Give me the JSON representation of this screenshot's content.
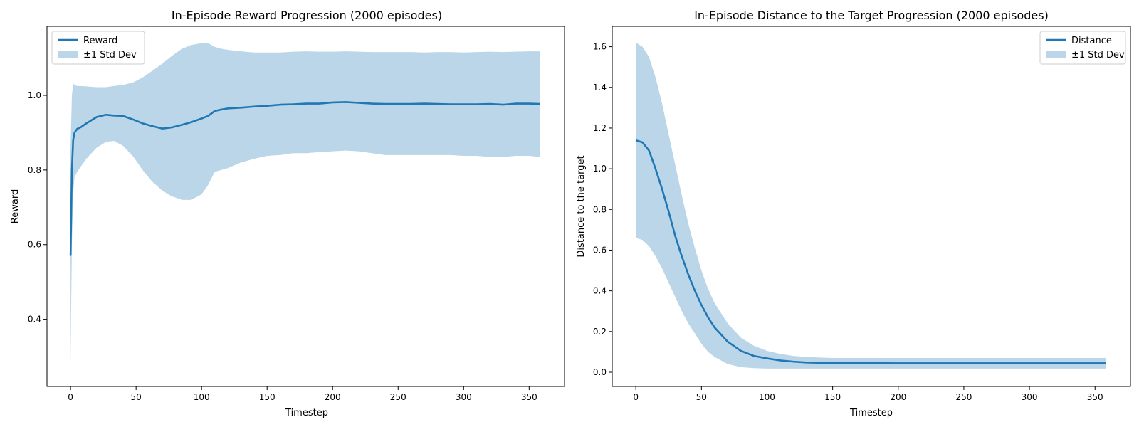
{
  "colors": {
    "line": "#1f77b4",
    "band": "#1f77b4",
    "band_opacity": 0.3
  },
  "chart_data": [
    {
      "type": "line",
      "title": "In-Episode Reward Progression (2000 episodes)",
      "xlabel": "Timestep",
      "ylabel": "Reward",
      "xlim": [
        -18,
        377
      ],
      "ylim": [
        0.22,
        1.185
      ],
      "xticks": [
        0,
        50,
        100,
        150,
        200,
        250,
        300,
        350
      ],
      "yticks": [
        0.4,
        0.6,
        0.8,
        1.0
      ],
      "legend_position": "upper-left",
      "legend": [
        "Reward",
        "±1 Std Dev"
      ],
      "grid": false,
      "series": [
        {
          "name": "Reward",
          "x": [
            0,
            1,
            2,
            3,
            5,
            8,
            12,
            20,
            27,
            33,
            40,
            48,
            55,
            62,
            70,
            77,
            85,
            92,
            100,
            105,
            110,
            115,
            120,
            130,
            140,
            150,
            160,
            170,
            180,
            190,
            200,
            210,
            220,
            230,
            240,
            250,
            260,
            270,
            280,
            290,
            300,
            310,
            320,
            330,
            340,
            350,
            358
          ],
          "y": [
            0.57,
            0.8,
            0.88,
            0.9,
            0.91,
            0.915,
            0.925,
            0.942,
            0.948,
            0.946,
            0.945,
            0.935,
            0.925,
            0.918,
            0.911,
            0.914,
            0.921,
            0.928,
            0.938,
            0.945,
            0.958,
            0.962,
            0.965,
            0.967,
            0.97,
            0.972,
            0.975,
            0.976,
            0.978,
            0.978,
            0.981,
            0.982,
            0.98,
            0.978,
            0.977,
            0.977,
            0.977,
            0.978,
            0.977,
            0.976,
            0.976,
            0.976,
            0.977,
            0.975,
            0.978,
            0.978,
            0.977
          ],
          "lower": [
            0.28,
            0.6,
            0.74,
            0.78,
            0.795,
            0.81,
            0.83,
            0.86,
            0.875,
            0.878,
            0.865,
            0.835,
            0.8,
            0.77,
            0.745,
            0.73,
            0.72,
            0.72,
            0.735,
            0.76,
            0.795,
            0.8,
            0.805,
            0.82,
            0.83,
            0.838,
            0.84,
            0.845,
            0.845,
            0.848,
            0.85,
            0.852,
            0.85,
            0.845,
            0.84,
            0.84,
            0.84,
            0.84,
            0.84,
            0.84,
            0.838,
            0.838,
            0.835,
            0.835,
            0.838,
            0.838,
            0.835
          ],
          "upper": [
            0.86,
            1.0,
            1.032,
            1.028,
            1.025,
            1.025,
            1.024,
            1.022,
            1.022,
            1.025,
            1.028,
            1.035,
            1.048,
            1.065,
            1.085,
            1.105,
            1.125,
            1.135,
            1.14,
            1.14,
            1.13,
            1.125,
            1.122,
            1.118,
            1.115,
            1.115,
            1.115,
            1.117,
            1.118,
            1.117,
            1.117,
            1.118,
            1.117,
            1.116,
            1.116,
            1.116,
            1.116,
            1.115,
            1.116,
            1.116,
            1.115,
            1.116,
            1.117,
            1.116,
            1.117,
            1.118,
            1.118
          ]
        }
      ]
    },
    {
      "type": "line",
      "title": "In-Episode Distance to the Target Progression (2000 episodes)",
      "xlabel": "Timestep",
      "ylabel": "Distance to the target",
      "xlim": [
        -18,
        377
      ],
      "ylim": [
        -0.07,
        1.7
      ],
      "xticks": [
        0,
        50,
        100,
        150,
        200,
        250,
        300,
        350
      ],
      "yticks": [
        0.0,
        0.2,
        0.4,
        0.6,
        0.8,
        1.0,
        1.2,
        1.4,
        1.6
      ],
      "legend_position": "upper-right",
      "legend": [
        "Distance",
        "±1 Std Dev"
      ],
      "grid": false,
      "series": [
        {
          "name": "Distance",
          "x": [
            0,
            5,
            10,
            15,
            20,
            25,
            30,
            35,
            40,
            45,
            50,
            55,
            60,
            70,
            80,
            90,
            100,
            110,
            120,
            130,
            140,
            150,
            160,
            180,
            200,
            220,
            240,
            260,
            280,
            300,
            320,
            340,
            358
          ],
          "y": [
            1.14,
            1.13,
            1.09,
            1.0,
            0.9,
            0.79,
            0.67,
            0.57,
            0.48,
            0.4,
            0.33,
            0.27,
            0.22,
            0.15,
            0.105,
            0.08,
            0.068,
            0.058,
            0.052,
            0.048,
            0.046,
            0.045,
            0.045,
            0.045,
            0.044,
            0.044,
            0.044,
            0.044,
            0.044,
            0.044,
            0.044,
            0.044,
            0.044
          ],
          "lower": [
            0.66,
            0.65,
            0.62,
            0.57,
            0.51,
            0.44,
            0.37,
            0.3,
            0.24,
            0.19,
            0.14,
            0.1,
            0.075,
            0.04,
            0.025,
            0.02,
            0.018,
            0.018,
            0.018,
            0.018,
            0.018,
            0.018,
            0.018,
            0.018,
            0.018,
            0.018,
            0.018,
            0.018,
            0.018,
            0.018,
            0.018,
            0.018,
            0.018
          ],
          "upper": [
            1.62,
            1.6,
            1.55,
            1.45,
            1.32,
            1.17,
            1.02,
            0.87,
            0.73,
            0.61,
            0.5,
            0.41,
            0.34,
            0.24,
            0.17,
            0.13,
            0.105,
            0.09,
            0.08,
            0.075,
            0.072,
            0.07,
            0.07,
            0.07,
            0.07,
            0.07,
            0.07,
            0.07,
            0.07,
            0.07,
            0.07,
            0.07,
            0.07
          ]
        }
      ]
    }
  ]
}
